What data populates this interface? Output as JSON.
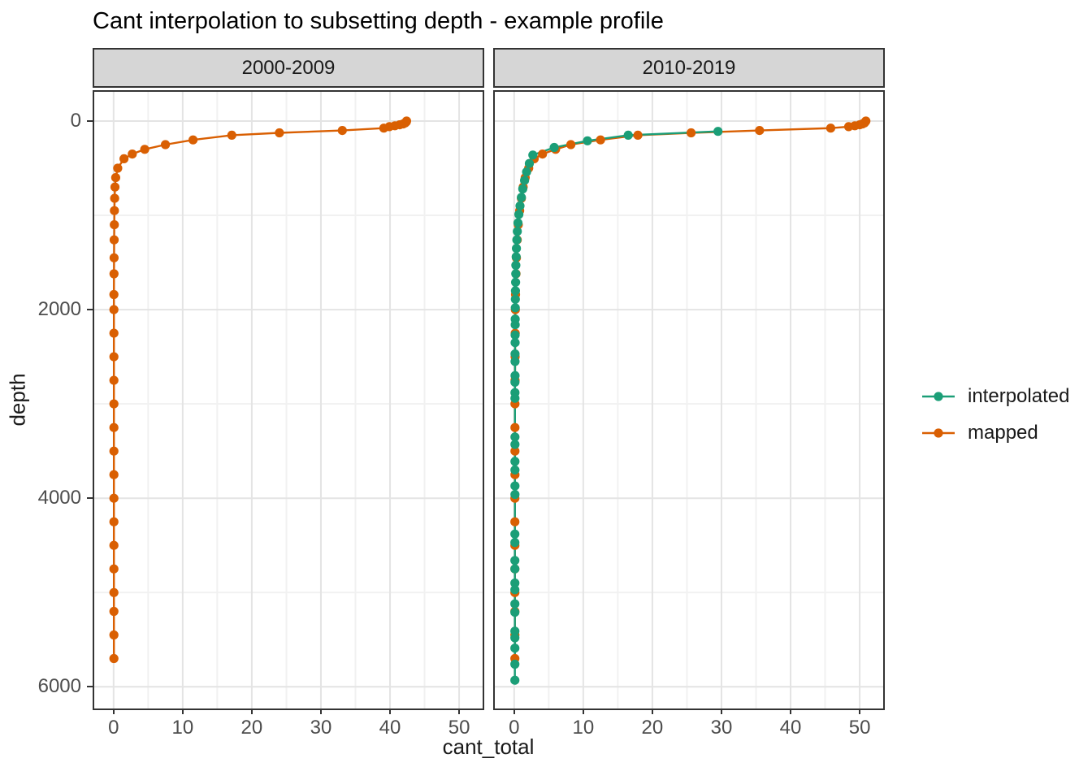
{
  "title": "Cant interpolation to subsetting depth - example profile",
  "axes": {
    "x_label": "cant_total",
    "y_label": "depth",
    "x_ticks": [
      0,
      10,
      20,
      30,
      40,
      50
    ],
    "x_minor": [
      5,
      15,
      25,
      35,
      45
    ],
    "y_ticks": [
      0,
      2000,
      4000,
      6000
    ],
    "y_minor": [
      1000,
      3000,
      5000
    ],
    "x_range": [
      -2.8,
      53.4
    ],
    "y_range": [
      -310,
      6230
    ],
    "y_reversed": true,
    "grid": true
  },
  "legend": {
    "position": "right",
    "items": [
      {
        "label": "interpolated",
        "color": "#1B9E77"
      },
      {
        "label": "mapped",
        "color": "#D95F02"
      }
    ]
  },
  "colors": {
    "interpolated": "#1B9E77",
    "mapped": "#D95F02",
    "grid_major": "#e4e4e4",
    "grid_minor": "#f1f1f1",
    "panel_border": "#333333",
    "strip_fill": "#d6d6d6",
    "axis_text": "#4d4d4d"
  },
  "chart_data": [
    {
      "type": "line",
      "facet": "2000-2009",
      "x_is": "cant_total",
      "y_is": "depth",
      "series": [
        {
          "name": "mapped",
          "points": [
            [
              42.4,
              0
            ],
            [
              42.35,
              10
            ],
            [
              42.2,
              20
            ],
            [
              41.9,
              30
            ],
            [
              41.4,
              40
            ],
            [
              40.7,
              50
            ],
            [
              39.9,
              60
            ],
            [
              39.1,
              75
            ],
            [
              33.1,
              100
            ],
            [
              24.0,
              125
            ],
            [
              17.1,
              150
            ],
            [
              11.5,
              200
            ],
            [
              7.5,
              250
            ],
            [
              4.5,
              300
            ],
            [
              2.7,
              350
            ],
            [
              1.5,
              400
            ],
            [
              0.6,
              500
            ],
            [
              0.3,
              600
            ],
            [
              0.2,
              700
            ],
            [
              0.15,
              820
            ],
            [
              0.12,
              950
            ],
            [
              0.1,
              1100
            ],
            [
              0.08,
              1260
            ],
            [
              0.07,
              1450
            ],
            [
              0.06,
              1620
            ],
            [
              0.05,
              1840
            ],
            [
              0.05,
              2000
            ],
            [
              0.05,
              2250
            ],
            [
              0.05,
              2500
            ],
            [
              0.05,
              2750
            ],
            [
              0.05,
              3000
            ],
            [
              0.05,
              3250
            ],
            [
              0.05,
              3500
            ],
            [
              0.05,
              3750
            ],
            [
              0.05,
              4000
            ],
            [
              0.05,
              4250
            ],
            [
              0.05,
              4500
            ],
            [
              0.05,
              4750
            ],
            [
              0.05,
              5000
            ],
            [
              0.05,
              5200
            ],
            [
              0.05,
              5450
            ],
            [
              0.05,
              5700
            ]
          ]
        }
      ]
    },
    {
      "type": "line",
      "facet": "2010-2019",
      "x_is": "cant_total",
      "y_is": "depth",
      "series": [
        {
          "name": "mapped",
          "points": [
            [
              50.9,
              0
            ],
            [
              50.8,
              10
            ],
            [
              50.7,
              20
            ],
            [
              50.4,
              30
            ],
            [
              50.0,
              40
            ],
            [
              49.3,
              50
            ],
            [
              48.4,
              60
            ],
            [
              45.8,
              75
            ],
            [
              35.5,
              100
            ],
            [
              25.6,
              125
            ],
            [
              17.9,
              150
            ],
            [
              12.5,
              200
            ],
            [
              8.2,
              250
            ],
            [
              6.0,
              300
            ],
            [
              4.1,
              350
            ],
            [
              2.9,
              400
            ],
            [
              2.1,
              500
            ],
            [
              1.6,
              600
            ],
            [
              1.3,
              700
            ],
            [
              1.05,
              820
            ],
            [
              0.8,
              950
            ],
            [
              0.6,
              1100
            ],
            [
              0.45,
              1260
            ],
            [
              0.33,
              1450
            ],
            [
              0.27,
              1620
            ],
            [
              0.2,
              1840
            ],
            [
              0.17,
              2000
            ],
            [
              0.15,
              2250
            ],
            [
              0.14,
              2500
            ],
            [
              0.13,
              2750
            ],
            [
              0.12,
              3000
            ],
            [
              0.12,
              3250
            ],
            [
              0.11,
              3500
            ],
            [
              0.11,
              3750
            ],
            [
              0.1,
              4000
            ],
            [
              0.1,
              4250
            ],
            [
              0.1,
              4500
            ],
            [
              0.1,
              4750
            ],
            [
              0.1,
              5000
            ],
            [
              0.1,
              5200
            ],
            [
              0.1,
              5450
            ],
            [
              0.1,
              5700
            ]
          ]
        },
        {
          "name": "interpolated",
          "points": [
            [
              29.5,
              110
            ],
            [
              16.5,
              150
            ],
            [
              10.6,
              210
            ],
            [
              5.8,
              280
            ],
            [
              2.7,
              360
            ],
            [
              2.2,
              450
            ],
            [
              1.8,
              540
            ],
            [
              1.5,
              630
            ],
            [
              1.25,
              720
            ],
            [
              1.05,
              810
            ],
            [
              0.85,
              900
            ],
            [
              0.68,
              990
            ],
            [
              0.55,
              1080
            ],
            [
              0.46,
              1170
            ],
            [
              0.39,
              1260
            ],
            [
              0.33,
              1350
            ],
            [
              0.29,
              1440
            ],
            [
              0.25,
              1530
            ],
            [
              0.23,
              1620
            ],
            [
              0.21,
              1710
            ],
            [
              0.19,
              1800
            ],
            [
              0.18,
              1890
            ],
            [
              0.16,
              1980
            ],
            [
              0.15,
              2100
            ],
            [
              0.15,
              2160
            ],
            [
              0.14,
              2270
            ],
            [
              0.14,
              2350
            ],
            [
              0.13,
              2470
            ],
            [
              0.13,
              2550
            ],
            [
              0.13,
              2700
            ],
            [
              0.12,
              2770
            ],
            [
              0.12,
              2880
            ],
            [
              0.12,
              2940
            ],
            [
              0.11,
              3350
            ],
            [
              0.11,
              3430
            ],
            [
              0.11,
              3610
            ],
            [
              0.11,
              3700
            ],
            [
              0.11,
              3870
            ],
            [
              0.11,
              3960
            ],
            [
              0.1,
              4380
            ],
            [
              0.1,
              4470
            ],
            [
              0.1,
              4660
            ],
            [
              0.1,
              4750
            ],
            [
              0.1,
              4900
            ],
            [
              0.1,
              4970
            ],
            [
              0.1,
              5120
            ],
            [
              0.1,
              5210
            ],
            [
              0.1,
              5410
            ],
            [
              0.1,
              5480
            ],
            [
              0.1,
              5590
            ],
            [
              0.1,
              5760
            ],
            [
              0.1,
              5930
            ]
          ]
        }
      ]
    }
  ]
}
